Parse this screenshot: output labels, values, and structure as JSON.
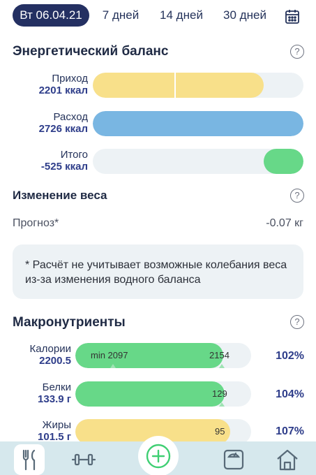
{
  "tabs": {
    "active": "Вт 06.04.21",
    "t7": "7 дней",
    "t14": "14 дней",
    "t30": "30 дней"
  },
  "energy": {
    "title": "Энергетический баланс",
    "income_label": "Приход",
    "income_value": "2201 ккал",
    "expense_label": "Расход",
    "expense_value": "2726 ккал",
    "total_label": "Итого",
    "total_value": "-525 ккал",
    "income_fill_fraction": 0.81,
    "expense_fill_fraction": 1.0,
    "total_fill_fraction": 0.19
  },
  "weight": {
    "title": "Изменение веса",
    "forecast_label": "Прогноз*",
    "forecast_value": "-0.07 кг"
  },
  "note": {
    "text": "* Расчёт не учитывает возможные колебания веса из-за изменения водного баланса"
  },
  "macros": {
    "title": "Макронутриенты",
    "rows": [
      {
        "name": "Калории",
        "value": "2200.5",
        "min_text": "min 2097",
        "target_text": "2154",
        "percent": "102%",
        "fill_fraction": 0.84
      },
      {
        "name": "Белки",
        "value": "133.9 г",
        "target_text": "129",
        "percent": "104%",
        "fill_fraction": 0.85
      },
      {
        "name": "Жиры",
        "value": "101.5 г",
        "target_text": "95",
        "percent": "107%",
        "fill_fraction": 0.88
      }
    ]
  },
  "colors": {
    "navy": "#243062",
    "yellow": "#f8e08a",
    "blue": "#79b6e2",
    "green": "#67d888",
    "track": "#edf2f5",
    "nav_bg": "#d6e8ed"
  },
  "nav": {
    "items": [
      "fork-knife-icon",
      "dumbbell-icon",
      "add-icon",
      "scale-icon",
      "home-icon"
    ],
    "active": "fork-knife-icon"
  }
}
